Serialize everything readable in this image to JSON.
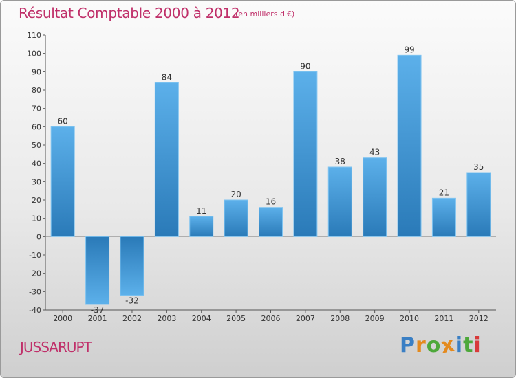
{
  "chart_data": {
    "type": "bar",
    "title": "Résultat Comptable 2000 à 2012",
    "subtitle": "(en milliers d'€)",
    "categories": [
      "2000",
      "2001",
      "2002",
      "2003",
      "2004",
      "2005",
      "2006",
      "2007",
      "2008",
      "2009",
      "2010",
      "2011",
      "2012"
    ],
    "values": [
      60,
      -37,
      -32,
      84,
      11,
      20,
      16,
      90,
      38,
      43,
      99,
      21,
      35
    ],
    "ylim": [
      -40,
      110
    ],
    "yticks": [
      110,
      100,
      90,
      80,
      70,
      60,
      50,
      40,
      30,
      20,
      10,
      0,
      -10,
      -20,
      -30,
      -40
    ],
    "xlabel": "",
    "ylabel": "",
    "grid": false,
    "bar_color_light": "#5aaee8",
    "bar_color_dark": "#2a7ab8"
  },
  "footer": {
    "commune": "JUSSARUPT",
    "logo_letters": [
      {
        "ch": "P",
        "color": "#3a7fc4"
      },
      {
        "ch": "r",
        "color": "#e48a1e"
      },
      {
        "ch": "o",
        "color": "#4da83a"
      },
      {
        "ch": "x",
        "color": "#e48a1e"
      },
      {
        "ch": "i",
        "color": "#3a7fc4"
      },
      {
        "ch": "t",
        "color": "#4da83a"
      },
      {
        "ch": "i",
        "color": "#d83a3a"
      }
    ]
  },
  "colors": {
    "title": "#c0306a",
    "axis": "#555555"
  }
}
